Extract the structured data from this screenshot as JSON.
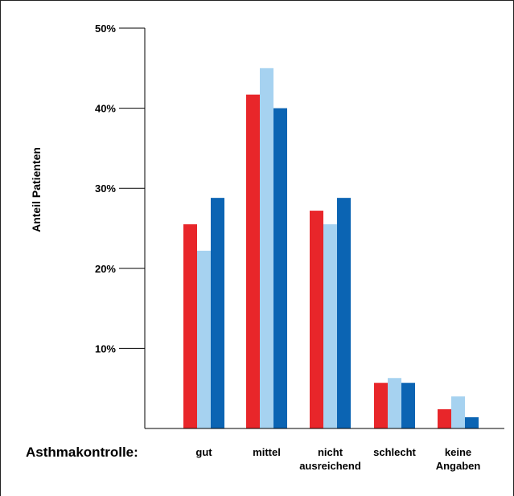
{
  "chart_data": {
    "type": "bar",
    "title": "",
    "ylabel": "Anteil Patienten",
    "x_prefix_label": "Asthmakontrolle:",
    "categories": [
      [
        "gut"
      ],
      [
        "mittel"
      ],
      [
        "nicht",
        "ausreichend"
      ],
      [
        "schlecht"
      ],
      [
        "keine",
        "Angaben"
      ]
    ],
    "yticks": [
      "10%",
      "20%",
      "30%",
      "40%",
      "50%"
    ],
    "ylim": [
      0,
      50
    ],
    "legend": "none",
    "grid": false,
    "series": [
      {
        "color": "#e8262a",
        "values": [
          25.5,
          41.7,
          27.2,
          5.7,
          2.4
        ]
      },
      {
        "color": "#a6d2f0",
        "values": [
          22.2,
          45.0,
          25.5,
          6.3,
          4.0
        ]
      },
      {
        "color": "#0b64b3",
        "values": [
          28.8,
          40.0,
          28.8,
          5.7,
          1.4
        ]
      }
    ]
  }
}
